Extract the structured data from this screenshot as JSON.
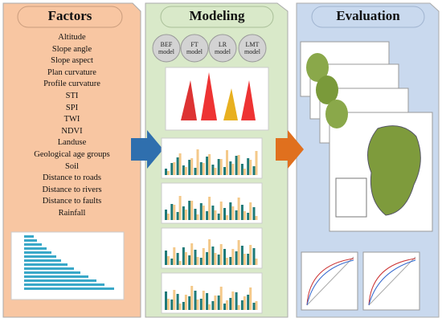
{
  "panels": [
    {
      "title": "Factors",
      "items": [
        "Altitude",
        "Slope angle",
        "Slope aspect",
        "Plan curvature",
        "Profile curvature",
        "STI",
        "SPI",
        "TWI",
        "NDVI",
        "Landuse",
        "Geological age groups",
        "Soil",
        "Distance to roads",
        "Distance to rivers",
        "Distance to faults",
        "Rainfall"
      ]
    },
    {
      "title": "Modeling",
      "models": [
        "BEF model",
        "FT model",
        "LR model",
        "LMT model"
      ]
    },
    {
      "title": "Evaluation"
    }
  ]
}
